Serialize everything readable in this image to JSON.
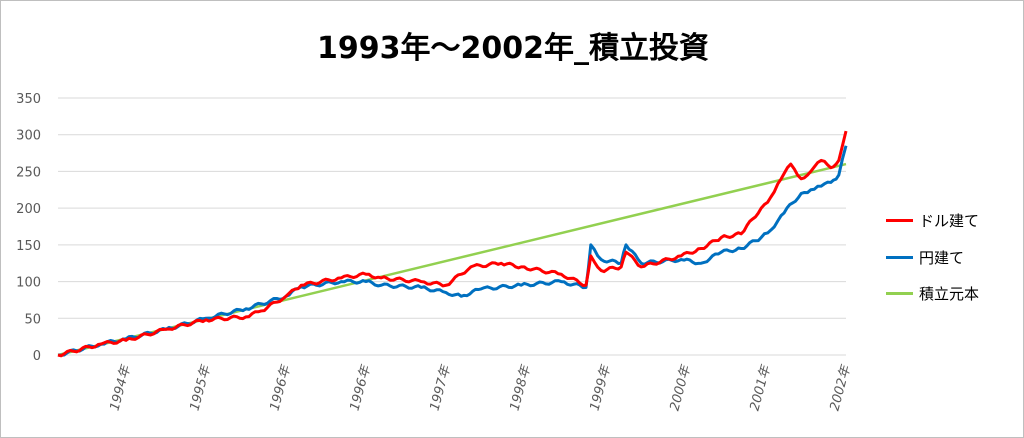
{
  "chart_data": {
    "type": "line",
    "title": "1993年～2002年_積立投資",
    "xlabel": "",
    "ylabel": "",
    "ylim": [
      0,
      350
    ],
    "yticks": [
      0,
      50,
      100,
      150,
      200,
      250,
      300,
      350
    ],
    "xlim": [
      0,
      9.85
    ],
    "xtick_positions": [
      0.85,
      1.85,
      2.85,
      3.85,
      4.85,
      5.85,
      6.85,
      7.85,
      8.85,
      9.85
    ],
    "xtick_labels": [
      "1994年",
      "1995年",
      "1996年",
      "1996年",
      "1997年",
      "1998年",
      "1999年",
      "2000年",
      "2001年",
      "2002年"
    ],
    "grid": true,
    "legend_position": "right",
    "series": [
      {
        "name": "ドル建て",
        "color": "#ff0000",
        "x": [
          0,
          0.54,
          0.85,
          1.35,
          1.85,
          2.35,
          2.54,
          2.85,
          3.04,
          3.54,
          3.85,
          4.04,
          4.54,
          4.85,
          5.16,
          5.54,
          5.79,
          6.29,
          6.6,
          6.66,
          6.79,
          7.04,
          7.1,
          7.29,
          7.79,
          8.04,
          8.29,
          8.54,
          8.79,
          8.91,
          9.04,
          9.16,
          9.29,
          9.41,
          9.54,
          9.66,
          9.76,
          9.85
        ],
        "y": [
          0,
          15,
          20,
          35,
          48,
          52,
          60,
          80,
          95,
          105,
          110,
          105,
          100,
          95,
          120,
          125,
          120,
          110,
          95,
          135,
          115,
          120,
          140,
          120,
          135,
          145,
          160,
          165,
          200,
          215,
          240,
          260,
          240,
          250,
          265,
          255,
          265,
          305
        ]
      },
      {
        "name": "円建て",
        "color": "#0070c0",
        "x": [
          0,
          0.54,
          0.85,
          1.35,
          1.85,
          2.35,
          2.85,
          3.04,
          3.54,
          3.85,
          4.04,
          4.54,
          4.85,
          5.04,
          5.29,
          5.79,
          6.29,
          6.6,
          6.66,
          6.79,
          7.04,
          7.1,
          7.29,
          7.79,
          8.04,
          8.29,
          8.54,
          8.79,
          8.91,
          9.04,
          9.29,
          9.41,
          9.54,
          9.66,
          9.76,
          9.85
        ],
        "y": [
          0,
          15,
          22,
          35,
          50,
          63,
          80,
          93,
          100,
          100,
          95,
          92,
          85,
          80,
          90,
          95,
          100,
          92,
          150,
          130,
          125,
          150,
          125,
          130,
          125,
          140,
          145,
          160,
          170,
          190,
          220,
          225,
          230,
          235,
          245,
          285
        ]
      },
      {
        "name": "積立元本",
        "color": "#92d050",
        "x": [
          0,
          9.85
        ],
        "y": [
          0,
          260
        ]
      }
    ]
  }
}
